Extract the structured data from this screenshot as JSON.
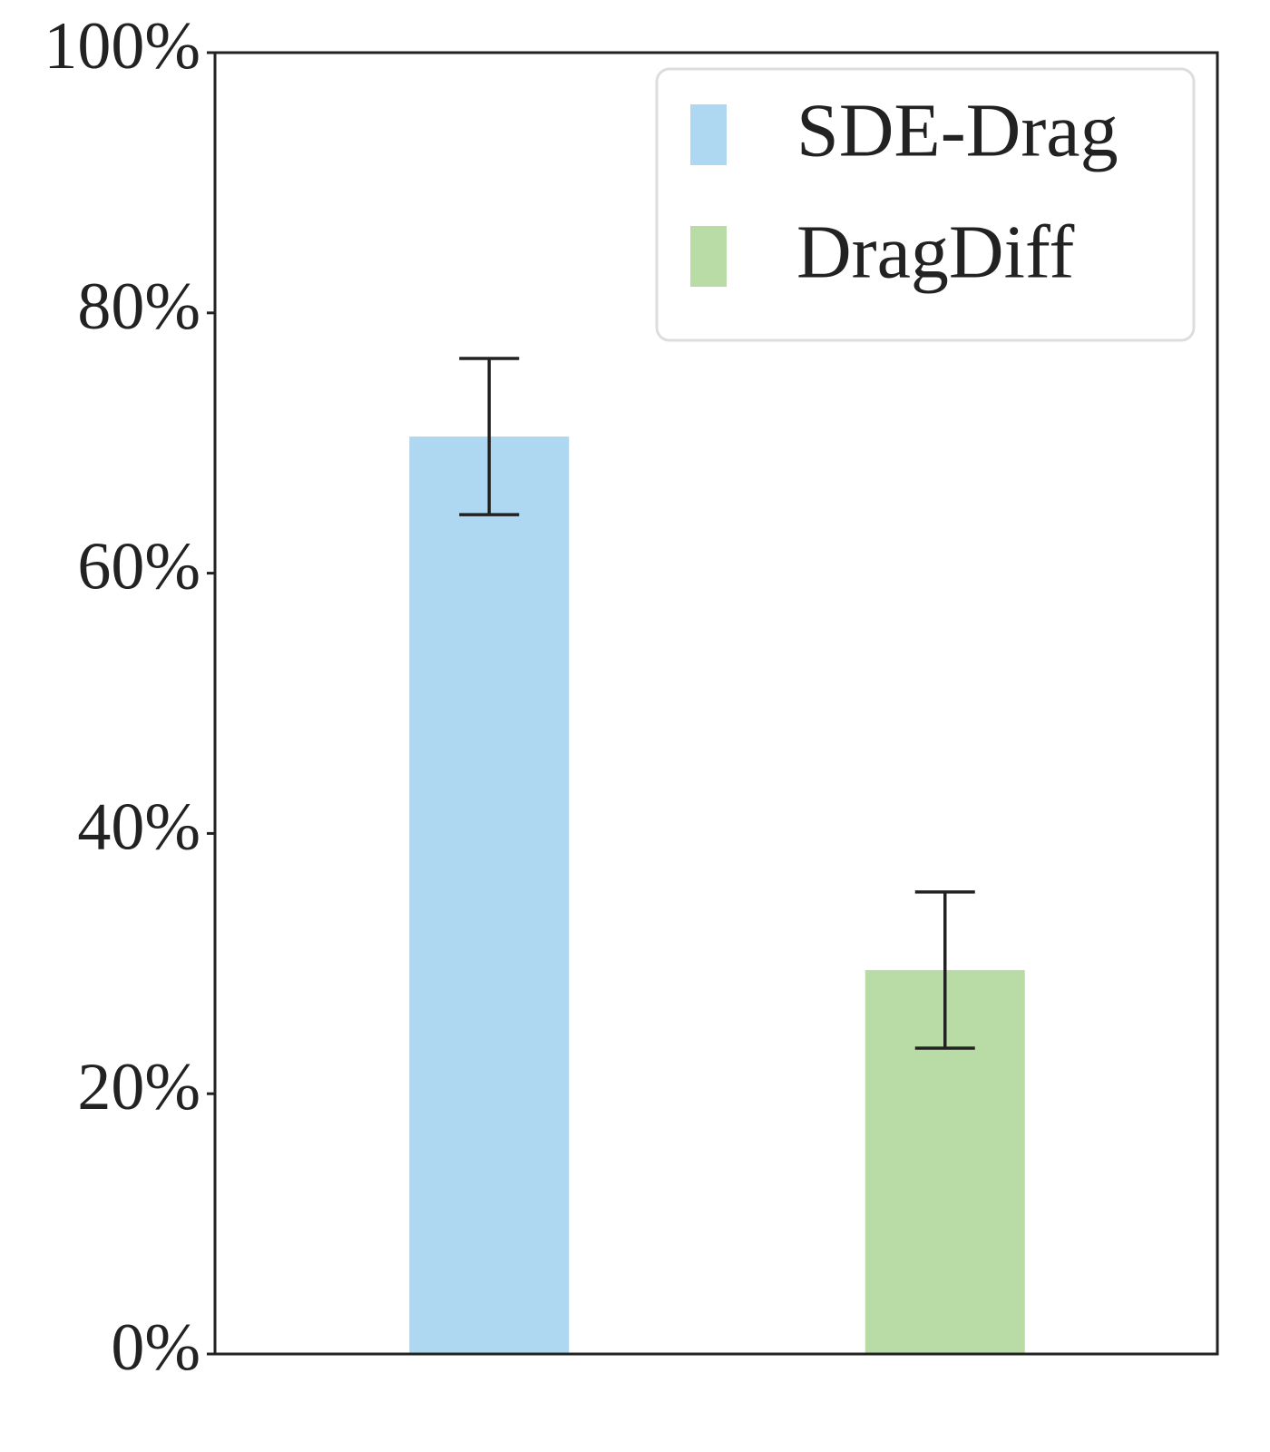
{
  "chart_data": {
    "type": "bar",
    "series": [
      {
        "name": "SDE-Drag",
        "color": "#aed8f2",
        "values": [
          70.5
        ],
        "errors": [
          6
        ]
      },
      {
        "name": "DragDiff",
        "color": "#b9dba6",
        "values": [
          29.5
        ],
        "errors": [
          6
        ]
      }
    ],
    "ylim": [
      0,
      100
    ],
    "yticks": [
      {
        "value": 0,
        "label": "0%"
      },
      {
        "value": 20,
        "label": "20%"
      },
      {
        "value": 40,
        "label": "40%"
      },
      {
        "value": 60,
        "label": "60%"
      },
      {
        "value": 80,
        "label": "80%"
      },
      {
        "value": 100,
        "label": "100%"
      }
    ],
    "grid": false,
    "legend": "upper right"
  }
}
